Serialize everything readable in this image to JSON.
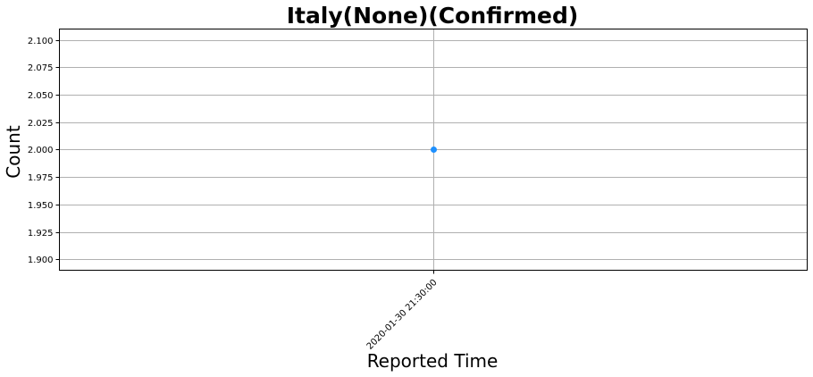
{
  "chart_data": {
    "type": "scatter",
    "title": "Italy(None)(Confirmed)",
    "xlabel": "Reported Time",
    "ylabel": "Count",
    "categories": [
      "2020-01-30 21:30:00"
    ],
    "series": [
      {
        "values": [
          2.0
        ]
      }
    ],
    "ylim": [
      1.89,
      2.11
    ],
    "yticks": [
      1.9,
      1.925,
      1.95,
      1.975,
      2.0,
      2.025,
      2.05,
      2.075,
      2.1
    ],
    "ytick_labels": [
      "1.900",
      "1.925",
      "1.950",
      "1.975",
      "2.000",
      "2.025",
      "2.050",
      "2.075",
      "2.100"
    ],
    "grid": true,
    "colors": {
      "marker": "#1e90ff",
      "grid": "#b0b0b0",
      "axis": "#000000"
    }
  }
}
